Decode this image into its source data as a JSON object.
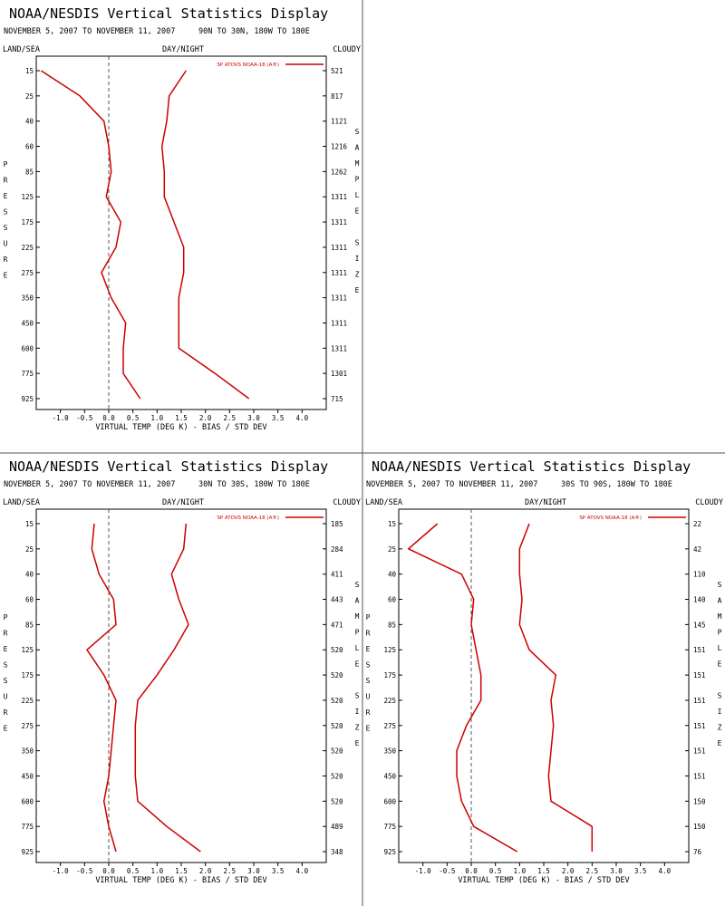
{
  "page": {
    "title": "NOAA/NESDIS Vertical Statistics Display",
    "subtitle_dates": "NOVEMBER 5, 2007 TO NOVEMBER 11, 2007",
    "header_left": "LAND/SEA",
    "header_center": "DAY/NIGHT",
    "header_right": "CLOUDY",
    "left_axis_label": "PRESSURE",
    "right_axis_label": "SAMPLE SIZE",
    "xlabel": "VIRTUAL TEMP (DEG K) - BIAS / STD DEV",
    "legend": "SP ATOVS NOAA-18 (A®)",
    "line_color": "#cc0000"
  },
  "chart_data": [
    {
      "type": "line",
      "region": "90N TO 30N, 180W TO 180E",
      "pressure_levels": [
        15,
        25,
        40,
        60,
        85,
        125,
        175,
        225,
        275,
        350,
        450,
        600,
        775,
        925
      ],
      "sample_size": [
        521,
        817,
        1121,
        1216,
        1262,
        1311,
        1311,
        1311,
        1311,
        1311,
        1311,
        1311,
        1301,
        715
      ],
      "xlim": [
        -1.5,
        4.5
      ],
      "xticks": [
        "-1.0",
        "-0.5",
        "0.0",
        "0.5",
        "1.0",
        "1.5",
        "2.0",
        "2.5",
        "3.0",
        "3.5",
        "4.0"
      ],
      "series": [
        {
          "values": [
            -1.4,
            -0.6,
            -0.1,
            0.0,
            0.05,
            -0.05,
            0.25,
            0.15,
            -0.15,
            0.05,
            0.35,
            0.3,
            0.3,
            0.65
          ]
        },
        {
          "values": [
            1.6,
            1.25,
            1.2,
            1.1,
            1.15,
            1.15,
            1.35,
            1.55,
            1.55,
            1.45,
            1.45,
            1.45,
            2.2,
            2.9
          ]
        }
      ]
    },
    {
      "type": "line",
      "region": "30N TO 30S, 180W TO 180E",
      "pressure_levels": [
        15,
        25,
        40,
        60,
        85,
        125,
        175,
        225,
        275,
        350,
        450,
        600,
        775,
        925
      ],
      "sample_size": [
        185,
        284,
        411,
        443,
        471,
        520,
        520,
        520,
        520,
        520,
        520,
        520,
        489,
        348
      ],
      "xlim": [
        -1.5,
        4.5
      ],
      "xticks": [
        "-1.0",
        "-0.5",
        "0.0",
        "0.5",
        "1.0",
        "1.5",
        "2.0",
        "2.5",
        "3.0",
        "3.5",
        "4.0"
      ],
      "series": [
        {
          "values": [
            -0.3,
            -0.35,
            -0.2,
            0.1,
            0.15,
            -0.45,
            -0.1,
            0.15,
            0.1,
            0.05,
            0.0,
            -0.1,
            0.0,
            0.15
          ]
        },
        {
          "values": [
            1.6,
            1.55,
            1.3,
            1.45,
            1.65,
            1.35,
            1.0,
            0.6,
            0.55,
            0.55,
            0.55,
            0.6,
            1.2,
            1.9
          ]
        }
      ]
    },
    {
      "type": "line",
      "region": "30S TO 90S, 180W TO 180E",
      "pressure_levels": [
        15,
        25,
        40,
        60,
        85,
        125,
        175,
        225,
        275,
        350,
        450,
        600,
        775,
        925
      ],
      "sample_size": [
        22,
        42,
        110,
        140,
        145,
        151,
        151,
        151,
        151,
        151,
        151,
        150,
        150,
        76
      ],
      "xlim": [
        -1.5,
        4.5
      ],
      "xticks": [
        "-1.0",
        "-0.5",
        "0.0",
        "0.5",
        "1.0",
        "1.5",
        "2.0",
        "2.5",
        "3.0",
        "3.5",
        "4.0"
      ],
      "series": [
        {
          "values": [
            -0.7,
            -1.3,
            -0.2,
            0.05,
            0.0,
            0.1,
            0.2,
            0.2,
            -0.1,
            -0.3,
            -0.3,
            -0.2,
            0.05,
            0.95
          ]
        },
        {
          "values": [
            1.2,
            1.0,
            1.0,
            1.05,
            1.0,
            1.2,
            1.75,
            1.65,
            1.7,
            1.65,
            1.6,
            1.65,
            2.5,
            2.5
          ]
        }
      ]
    }
  ]
}
